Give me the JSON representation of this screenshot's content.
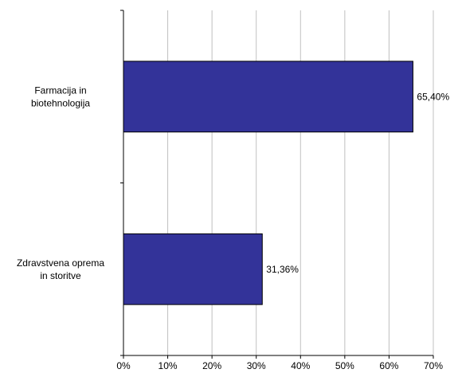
{
  "chart_data": {
    "type": "bar",
    "orientation": "horizontal",
    "categories": [
      [
        "Farmacija in",
        "biotehnologija"
      ],
      [
        "Zdravstvena oprema",
        "in storitve"
      ]
    ],
    "values": [
      65.4,
      31.36
    ],
    "value_labels": [
      "65,40%",
      "31,36%"
    ],
    "x_ticks": [
      "0%",
      "10%",
      "20%",
      "30%",
      "40%",
      "50%",
      "60%",
      "70%"
    ],
    "xlim": [
      0,
      70
    ],
    "grid": true,
    "legend": "none",
    "colors": {
      "bar_fill": "#333399",
      "bar_stroke": "#000000",
      "grid": "#c0c0c0"
    }
  }
}
